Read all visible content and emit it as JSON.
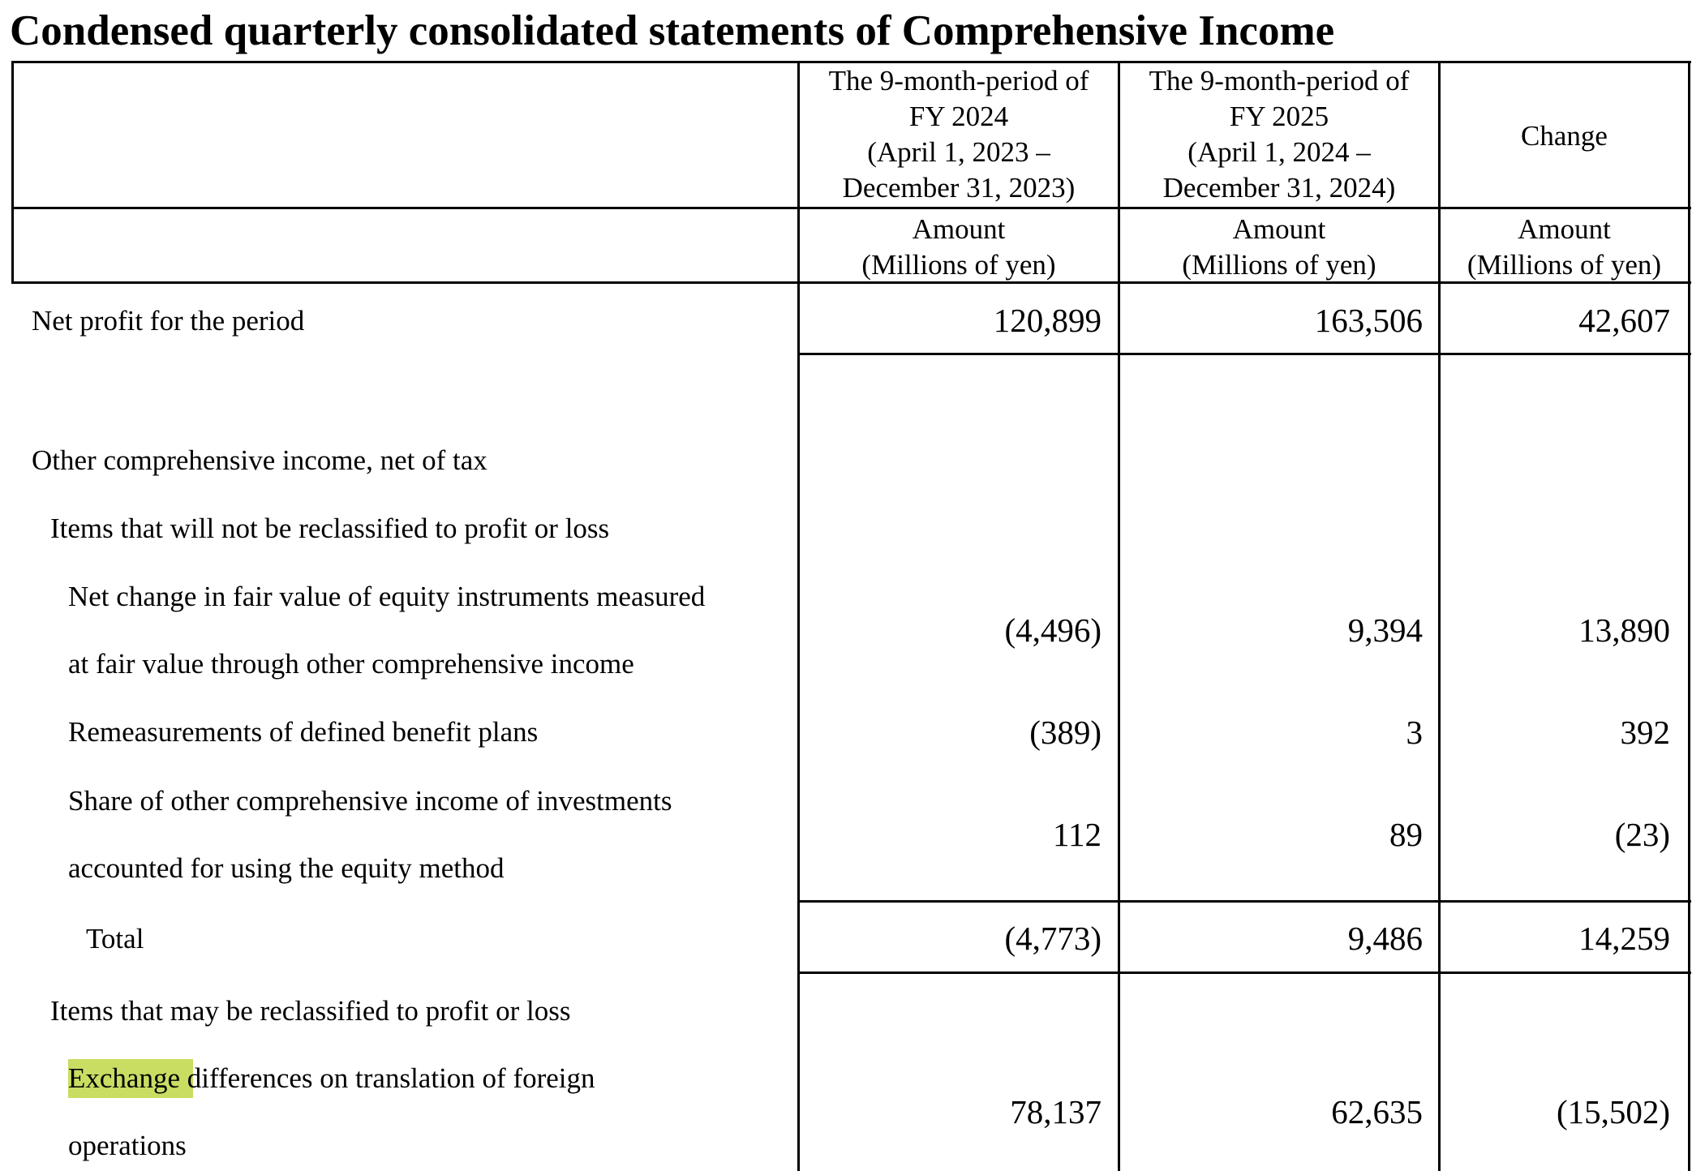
{
  "title": "Condensed quarterly consolidated statements of Comprehensive Income",
  "header": {
    "col1": [
      "The 9-month-period of",
      "FY 2024",
      "(April 1, 2023 –",
      "December 31, 2023)"
    ],
    "col2": [
      "The 9-month-period of",
      "FY 2025",
      "(April 1, 2024 –",
      "December 31, 2024)"
    ],
    "col3": "Change",
    "unit_line1": "Amount",
    "unit_line2": "(Millions of yen)"
  },
  "rows": {
    "net_profit": {
      "label": "Net profit for the period",
      "v1": "120,899",
      "v2": "163,506",
      "v3": "42,607"
    },
    "oci": {
      "label": "Other comprehensive income, net of tax"
    },
    "not_reclass": {
      "label": "Items that will not be reclassified to profit or loss"
    },
    "fair_value": {
      "label1": "Net change in fair value of equity instruments measured",
      "label2": "at fair value through other comprehensive income",
      "v1": "(4,496)",
      "v2": "9,394",
      "v3": "13,890"
    },
    "remeasure": {
      "label": "Remeasurements of defined benefit plans",
      "v1": "(389)",
      "v2": "3",
      "v3": "392"
    },
    "share_oci": {
      "label1": "Share of other comprehensive income of investments",
      "label2": "accounted for using the equity method",
      "v1": "112",
      "v2": "89",
      "v3": "(23)"
    },
    "total": {
      "label": "Total",
      "v1": "(4,773)",
      "v2": "9,486",
      "v3": "14,259"
    },
    "may_reclass": {
      "label": "Items that may be reclassified to profit or loss"
    },
    "exchange": {
      "label_highlight": "Exchange",
      "label_rest": " differences on translation of foreign",
      "label2": "operations",
      "v1": "78,137",
      "v2": "62,635",
      "v3": "(15,502)"
    }
  },
  "colors": {
    "highlight": "#c8dd62"
  }
}
